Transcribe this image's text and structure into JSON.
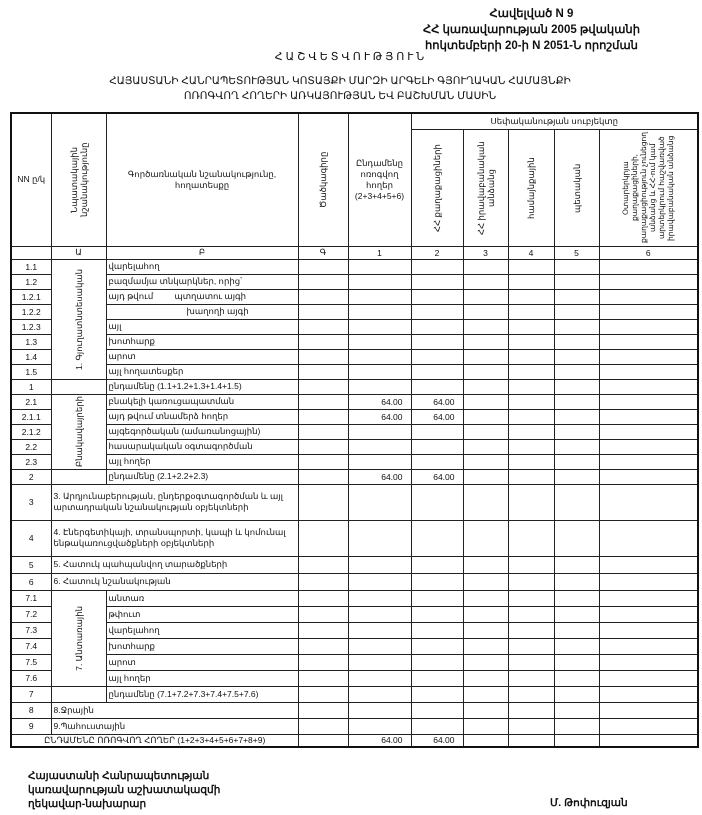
{
  "appendix": {
    "line1": "Հավելված N 9",
    "line2": "ՀՀ կառավարության 2005 թվականի",
    "line3": "հոկտեմբերի 20-ի N 2051-Ն որոշման"
  },
  "title": "ՀԱՇՎԵՏՎՈՒԹՅՈՒՆ",
  "subtitle_line1": "ՀԱՅԱՍՏԱՆԻ ՀԱՆՐԱՊԵՏՈՒԹՅԱՆ ԿՈՏԱՅՔԻ ՄԱՐԶԻ ԱՐԳԵԼԻ ԳՅՈՒՂԱԿԱՆ ՀԱՄԱՅՆՔԻ",
  "subtitle_line2": "ՈՌՈԳՎՈՂ ՀՈՂԵՐԻ ԱՌԿԱՅՈՒԹՅԱՆ ԵՎ ԲԱՇԽՄԱՆ ՄԱՍԻՆ",
  "table": {
    "headers": {
      "nn": "NN ը/կ",
      "purpose": "Նպատակային նշանակությունը",
      "function": "Գործառնական նշանակությունը, հողատեսքը",
      "code": "Ծածկագիրը",
      "total": "Ընդամենը ոռոգվող հողեր (2+3+4+5+6)",
      "ownership": "Սեփականության սուբյեկտը",
      "col2": "ՀՀ քաղաքացիների",
      "col3": "ՀՀ իրավաբանական անձանց",
      "col4": "համայնքային",
      "col5": "պետական",
      "col6": "Օտարերկրյա քաղաքացիների, քաղաքացիություն չունեցող անձանց և ՀՀ-ում կամ արտերկրում հաշվառված իրավաբանական անձանց"
    },
    "letters": [
      "",
      "Ա",
      "Բ",
      "Գ",
      "1",
      "2",
      "3",
      "4",
      "5",
      "6"
    ],
    "groups": [
      {
        "label": "1. Գյուղատնտեսական",
        "rows": [
          {
            "nn": "1.1",
            "name": "վարելահող",
            "values": [
              "",
              "",
              "",
              "",
              "",
              "",
              ""
            ]
          },
          {
            "nn": "1.2",
            "name": "բազմամյա տնկարկներ, որից՝",
            "values": [
              "",
              "",
              "",
              "",
              "",
              "",
              ""
            ]
          },
          {
            "nn": "1.2.1",
            "name": "այդ թվում         պտղատու այգի",
            "values": [
              "",
              "",
              "",
              "",
              "",
              "",
              ""
            ]
          },
          {
            "nn": "1.2.2",
            "name": "խաղողի այգի",
            "indent": true,
            "values": [
              "",
              "",
              "",
              "",
              "",
              "",
              ""
            ]
          },
          {
            "nn": "1.2.3",
            "name": "այլ",
            "values": [
              "",
              "",
              "",
              "",
              "",
              "",
              ""
            ]
          },
          {
            "nn": "1.3",
            "name": "խոտհարք",
            "values": [
              "",
              "",
              "",
              "",
              "",
              "",
              ""
            ]
          },
          {
            "nn": "1.4",
            "name": "արոտ",
            "values": [
              "",
              "",
              "",
              "",
              "",
              "",
              ""
            ]
          },
          {
            "nn": "1.5",
            "name": "այլ հողատեսքեր",
            "values": [
              "",
              "",
              "",
              "",
              "",
              "",
              ""
            ]
          },
          {
            "nn": "1",
            "name": "ընդամենը (1.1+1.2+1.3+1.4+1.5)",
            "values": [
              "",
              "",
              "",
              "",
              "",
              "",
              ""
            ]
          }
        ]
      },
      {
        "label": "Բնակավայրերի",
        "rows": [
          {
            "nn": "2.1",
            "name": "բնակելի կառուցապատման",
            "values": [
              "",
              "64.00",
              "64.00",
              "",
              "",
              "",
              ""
            ]
          },
          {
            "nn": "2.1.1",
            "name": "այդ թվում տնամերձ հողեր",
            "values": [
              "",
              "64.00",
              "64.00",
              "",
              "",
              "",
              ""
            ]
          },
          {
            "nn": "2.1.2",
            "name": "այգեգործական (ամառանոցային)",
            "values": [
              "",
              "",
              "",
              "",
              "",
              "",
              ""
            ]
          },
          {
            "nn": "2.2",
            "name": "հասարակական օգտագործման",
            "values": [
              "",
              "",
              "",
              "",
              "",
              "",
              ""
            ]
          },
          {
            "nn": "2.3",
            "name": "այլ հողեր",
            "values": [
              "",
              "",
              "",
              "",
              "",
              "",
              ""
            ]
          },
          {
            "nn": "2",
            "name": "ընդամենը (2.1+2.2+2.3)",
            "values": [
              "",
              "64.00",
              "64.00",
              "",
              "",
              "",
              ""
            ]
          }
        ]
      }
    ],
    "single_rows": [
      {
        "nn": "3",
        "name": "3. Արդյունաբերության, ընդերքօգտագործման և այլ արտադրական նշանակության օբյեկտների",
        "tall": true,
        "values": [
          "",
          "",
          "",
          "",
          "",
          "",
          ""
        ]
      },
      {
        "nn": "4",
        "name": "4. Էներգետիկայի, տրանսպորտի, կապի և կոմունալ ենթակառուցվածքների օբյեկտների",
        "tall": true,
        "values": [
          "",
          "",
          "",
          "",
          "",
          "",
          ""
        ]
      },
      {
        "nn": "5",
        "name": "5. Հատուկ պահպանվող տարածքների",
        "values": [
          "",
          "",
          "",
          "",
          "",
          "",
          ""
        ]
      },
      {
        "nn": "6",
        "name": "6. Հատուկ նշանակության",
        "values": [
          "",
          "",
          "",
          "",
          "",
          "",
          ""
        ]
      }
    ],
    "forest_group": {
      "label": "7. Անտառային",
      "rows": [
        {
          "nn": "7.1",
          "name": "անտառ",
          "values": [
            "",
            "",
            "",
            "",
            "",
            "",
            ""
          ]
        },
        {
          "nn": "7.2",
          "name": "թփուտ",
          "values": [
            "",
            "",
            "",
            "",
            "",
            "",
            ""
          ]
        },
        {
          "nn": "7.3",
          "name": "վարելահող",
          "values": [
            "",
            "",
            "",
            "",
            "",
            "",
            ""
          ]
        },
        {
          "nn": "7.4",
          "name": "խոտհարք",
          "values": [
            "",
            "",
            "",
            "",
            "",
            "",
            ""
          ]
        },
        {
          "nn": "7.5",
          "name": "արոտ",
          "values": [
            "",
            "",
            "",
            "",
            "",
            "",
            ""
          ]
        },
        {
          "nn": "7.6",
          "name": "այլ հողեր",
          "values": [
            "",
            "",
            "",
            "",
            "",
            "",
            ""
          ]
        },
        {
          "nn": "7",
          "name": "ընդամենը (7.1+7.2+7.3+7.4+7.5+7.6)",
          "values": [
            "",
            "",
            "",
            "",
            "",
            "",
            ""
          ]
        }
      ]
    },
    "end_rows": [
      {
        "nn": "8",
        "name": "8.Ջրային",
        "values": [
          "",
          "",
          "",
          "",
          "",
          "",
          ""
        ]
      },
      {
        "nn": "9",
        "name": "9.Պահուստային",
        "values": [
          "",
          "",
          "",
          "",
          "",
          "",
          ""
        ]
      }
    ],
    "grand_total": {
      "name": "ԸՆԴԱՄԵՆԸ ՈՌՈԳՎՈՂ ՀՈՂԵՐ (1+2+3+4+5+6+7+8+9)",
      "values": [
        "",
        "64.00",
        "64.00",
        "",
        "",
        "",
        ""
      ]
    }
  },
  "footer": {
    "position_line1": "Հայաստանի Հանրապետության",
    "position_line2": "կառավարության աշխատակազմի",
    "position_line3": "ղեկավար-նախարար",
    "signatory": "Մ. Թոփուզյան"
  }
}
